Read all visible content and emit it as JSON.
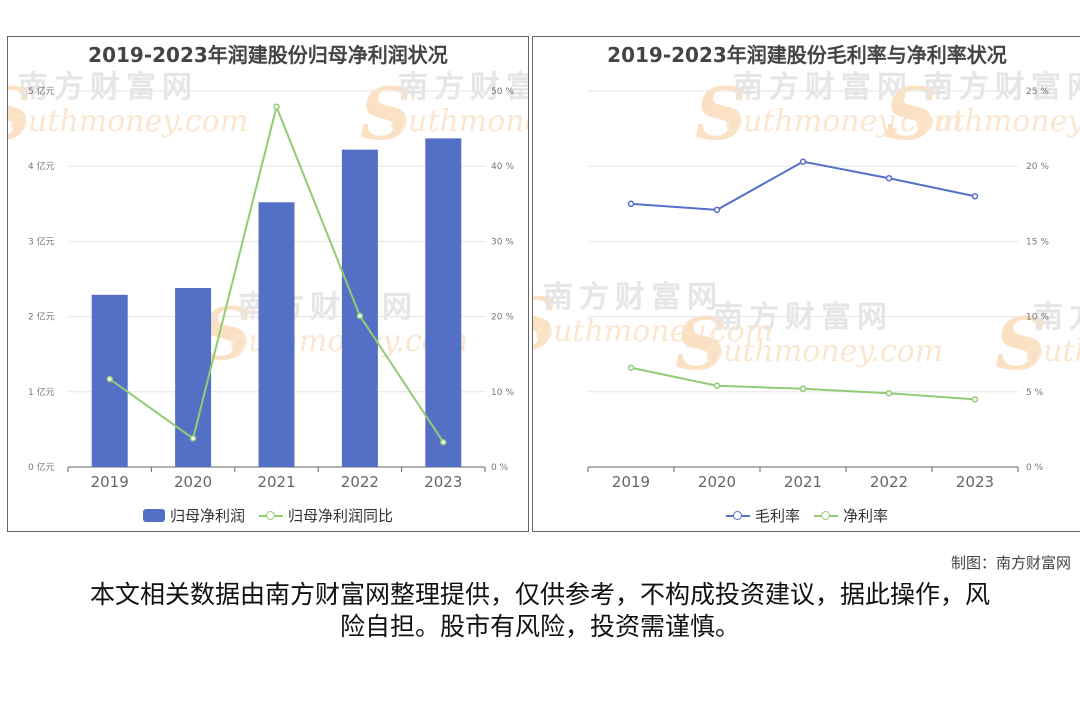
{
  "watermark": {
    "cn": "南方财富网",
    "en": "outhmoney.com",
    "s": "S"
  },
  "credit": "制图：南方财富网",
  "disclaimer": "本文相关数据由南方财富网整理提供，仅供参考，不构成投资建议，据此操作，风险自担。股市有风险，投资需谨慎。",
  "colors": {
    "bar": "#5470c6",
    "green": "#91cc75",
    "blue": "#5470c6",
    "grid": "#e6e6e6"
  },
  "chart_data": [
    {
      "type": "bar",
      "title": "2019-2023年润建股份归母净利润状况",
      "categories": [
        "2019",
        "2020",
        "2021",
        "2022",
        "2023"
      ],
      "y_left": {
        "ylim": [
          0,
          5
        ],
        "ticks": [
          "0 亿元",
          "1 亿元",
          "2 亿元",
          "3 亿元",
          "4 亿元",
          "5 亿元"
        ]
      },
      "y_right": {
        "ylim": [
          0,
          50
        ],
        "ticks": [
          "0 %",
          "10 %",
          "20 %",
          "30 %",
          "40 %",
          "50 %"
        ]
      },
      "series": [
        {
          "name": "归母净利润",
          "type": "bar",
          "axis": "left",
          "values": [
            2.29,
            2.38,
            3.52,
            4.22,
            4.37
          ]
        },
        {
          "name": "归母净利润同比",
          "type": "line",
          "axis": "right",
          "values": [
            11.7,
            3.8,
            47.9,
            20.1,
            3.3
          ]
        }
      ],
      "legend": "bottom"
    },
    {
      "type": "line",
      "title": "2019-2023年润建股份毛利率与净利率状况",
      "categories": [
        "2019",
        "2020",
        "2021",
        "2022",
        "2023"
      ],
      "y_right": {
        "ylim": [
          0,
          25
        ],
        "ticks": [
          "0 %",
          "5 %",
          "10 %",
          "15 %",
          "20 %",
          "25 %"
        ]
      },
      "series": [
        {
          "name": "毛利率",
          "values": [
            17.5,
            17.1,
            20.3,
            19.2,
            18.0
          ]
        },
        {
          "name": "净利率",
          "values": [
            6.6,
            5.4,
            5.2,
            4.9,
            4.5
          ]
        }
      ],
      "legend": "bottom"
    }
  ]
}
